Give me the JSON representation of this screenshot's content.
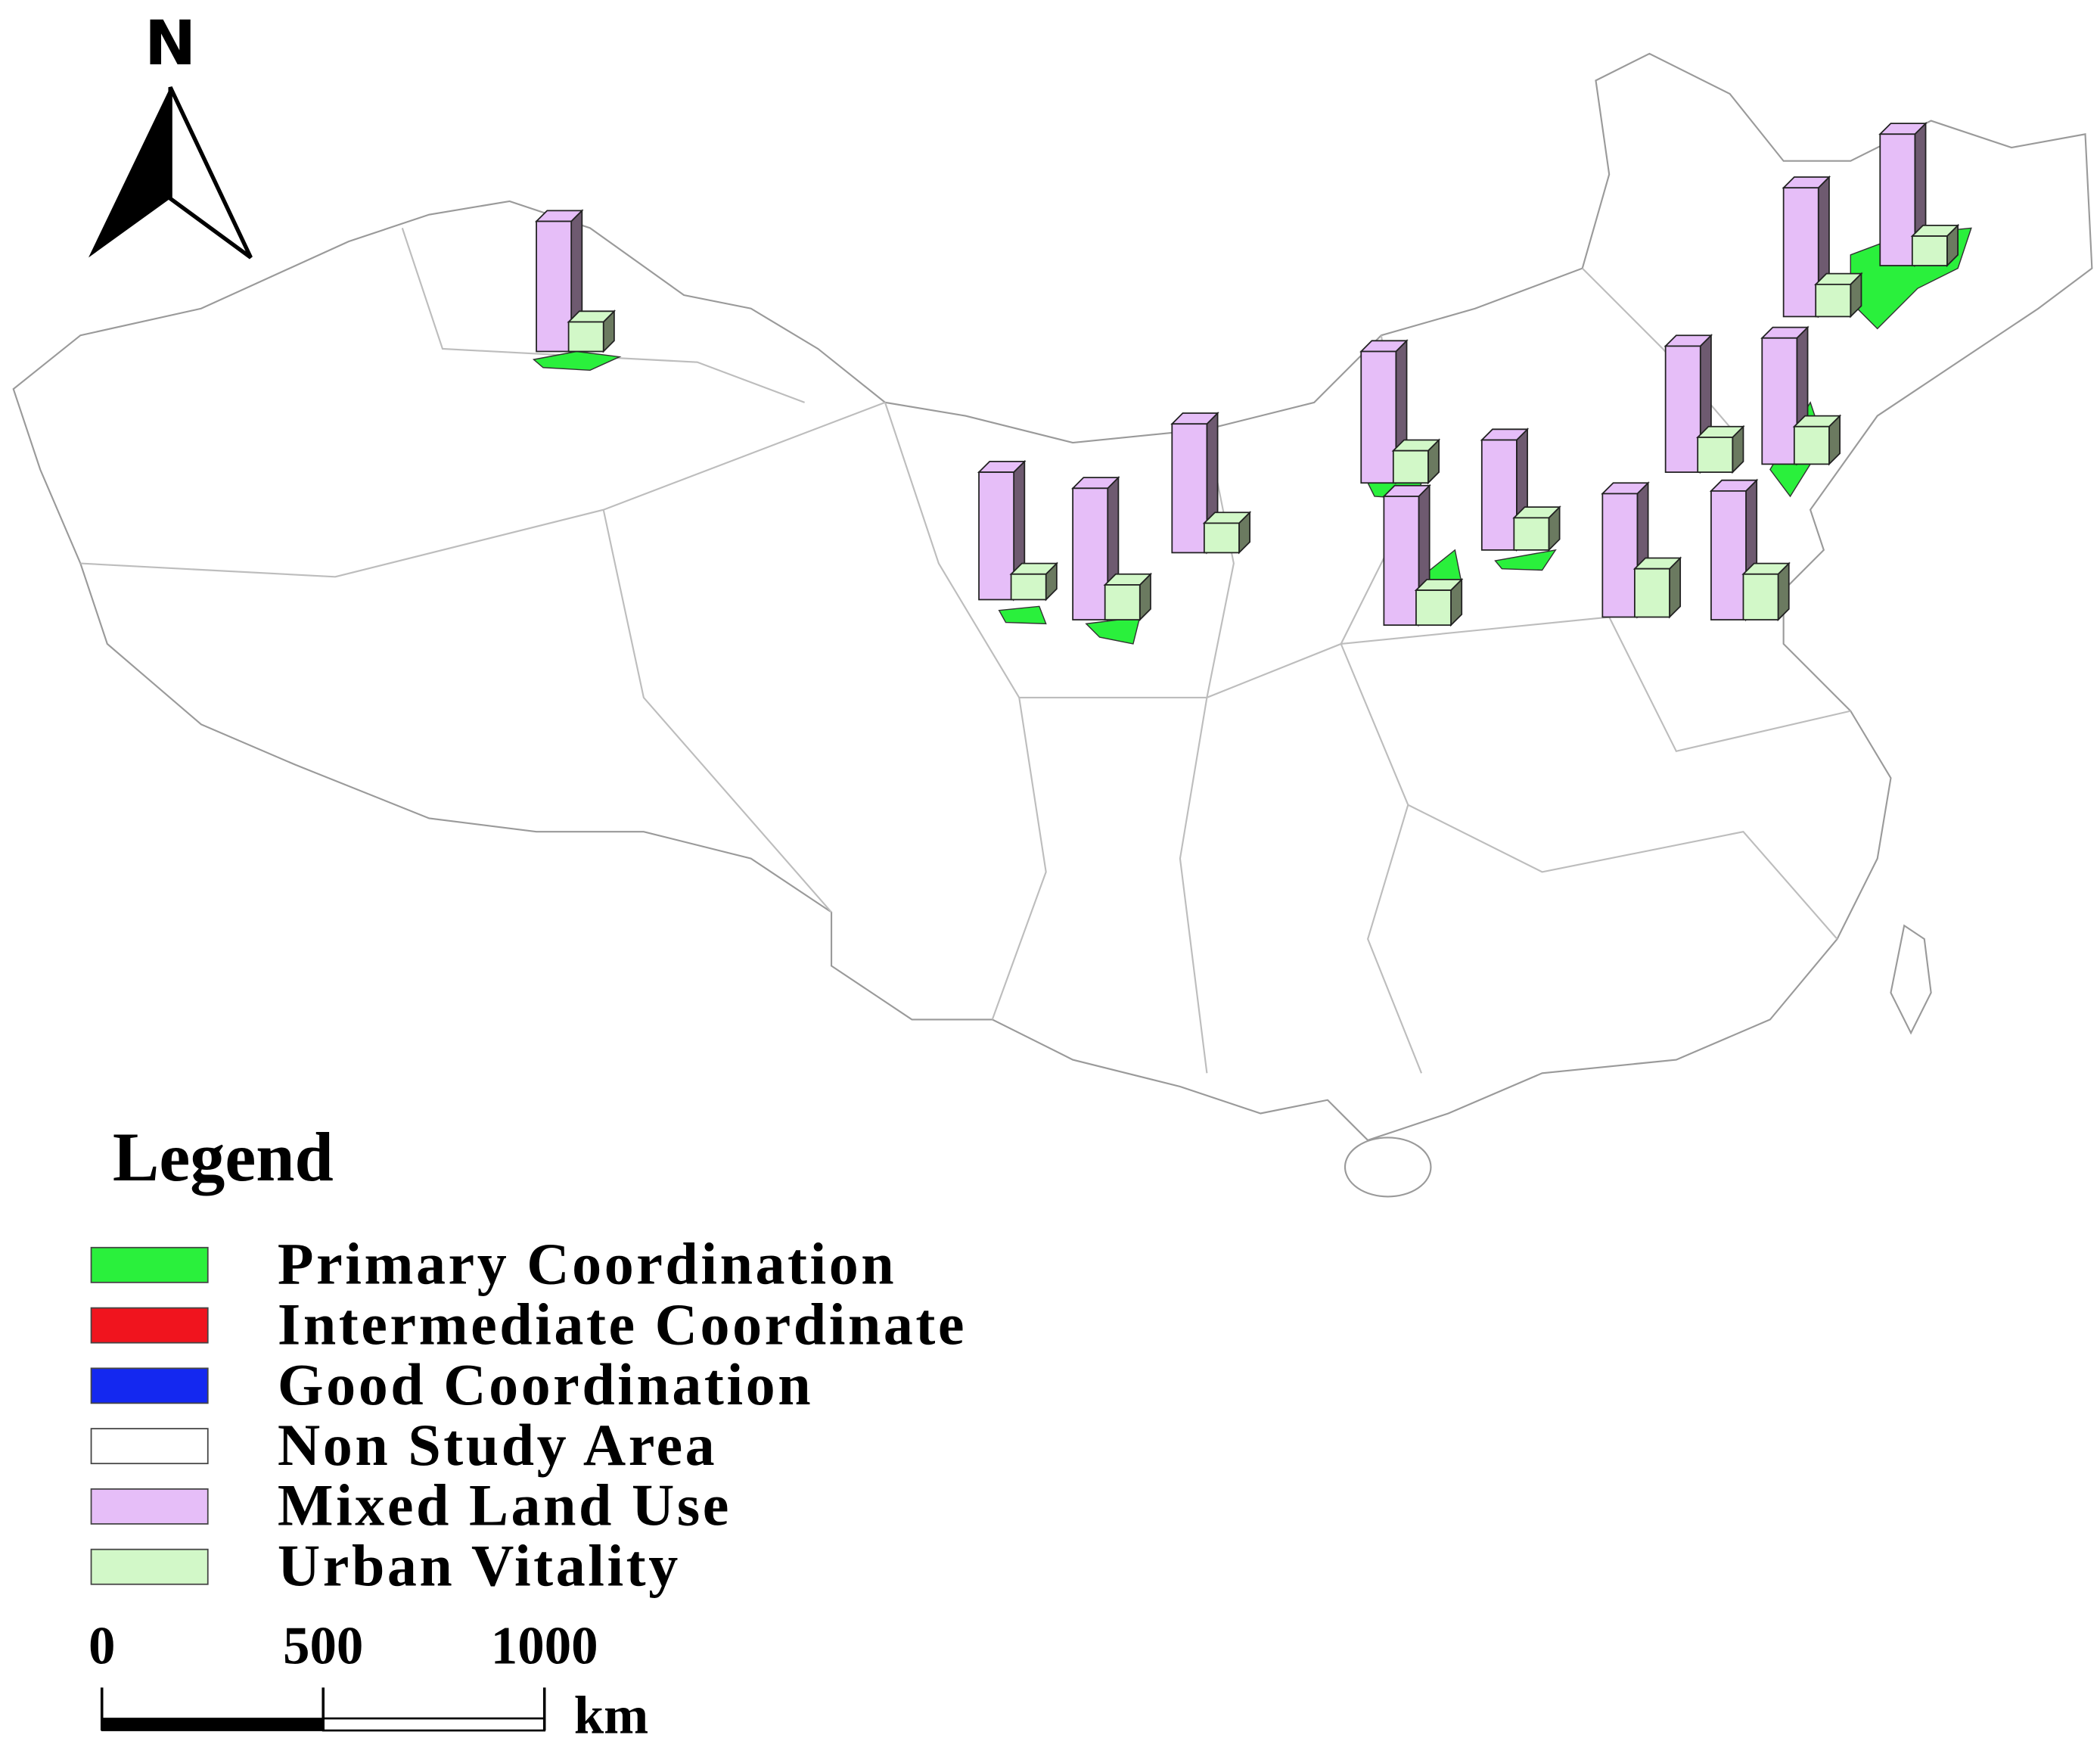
{
  "north_arrow": {
    "label": "N"
  },
  "legend": {
    "title": "Legend",
    "items": [
      {
        "label": "Primary Coordination",
        "color": "#2af03c"
      },
      {
        "label": "Intermediate Coordinate",
        "color": "#f0141e"
      },
      {
        "label": "Good Coordination",
        "color": "#1428f0"
      },
      {
        "label": "Non Study Area",
        "color": "#ffffff"
      },
      {
        "label": "Mixed Land Use",
        "color": "#e6bef8"
      },
      {
        "label": "Urban Vitality",
        "color": "#d2f8c8"
      }
    ]
  },
  "scale_bar": {
    "ticks": [
      0,
      500,
      1000
    ],
    "unit": "km"
  },
  "bars": {
    "mixed_land_use": [
      97,
      96,
      98,
      98,
      94,
      94,
      96,
      82,
      95,
      98,
      96,
      92,
      96
    ],
    "urban_vitality": [
      22,
      24,
      22,
      24,
      26,
      28,
      22,
      24,
      19,
      26,
      26,
      36,
      34
    ]
  }
}
